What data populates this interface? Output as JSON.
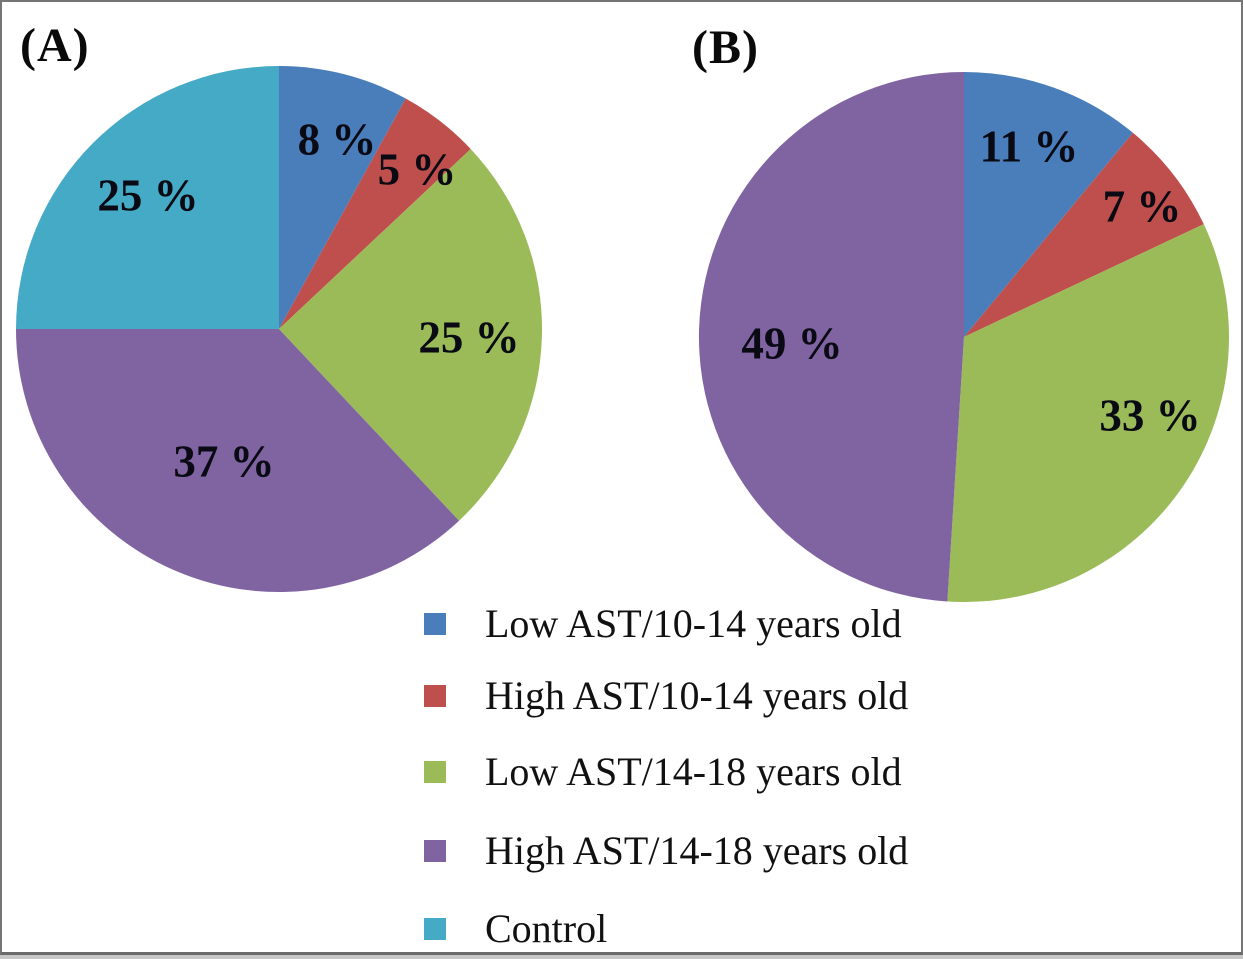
{
  "figure": {
    "background_color": "#ffffff",
    "frame_border_color": "#757575",
    "text_color": "#0a0a14"
  },
  "chart_data": [
    {
      "type": "pie",
      "panel_label": "(A)",
      "start_angle_deg": 0,
      "direction": "clockwise",
      "slices": [
        {
          "label": "Low AST/10-14 years old",
          "value_pct": 8,
          "data_label": "8 %",
          "color": "#4a7ebb"
        },
        {
          "label": "High AST/10-14 years old",
          "value_pct": 5,
          "data_label": "5 %",
          "color": "#bf4f4c"
        },
        {
          "label": "Low AST/14-18 years old",
          "value_pct": 25,
          "data_label": "25 %",
          "color": "#9bbb59"
        },
        {
          "label": "High AST/14-18 years old",
          "value_pct": 37,
          "data_label": "37 %",
          "color": "#8064a2"
        },
        {
          "label": "Control",
          "value_pct": 25,
          "data_label": "25 %",
          "color": "#45aac5"
        }
      ]
    },
    {
      "type": "pie",
      "panel_label": "(B)",
      "start_angle_deg": 0,
      "direction": "clockwise",
      "slices": [
        {
          "label": "Low AST/10-14 years old",
          "value_pct": 11,
          "data_label": "11 %",
          "color": "#4a7ebb"
        },
        {
          "label": "High AST/10-14 years old",
          "value_pct": 7,
          "data_label": "7 %",
          "color": "#bf4f4c"
        },
        {
          "label": "Low AST/14-18 years old",
          "value_pct": 33,
          "data_label": "33 %",
          "color": "#9bbb59"
        },
        {
          "label": "High AST/14-18 years old",
          "value_pct": 49,
          "data_label": "49 %",
          "color": "#8064a2"
        }
      ]
    }
  ],
  "legend": {
    "position": "bottom-center",
    "items": [
      {
        "label": "Low AST/10-14 years old",
        "color": "#4a7ebb"
      },
      {
        "label": "High AST/10-14 years old",
        "color": "#bf4f4c"
      },
      {
        "label": "Low AST/14-18 years old",
        "color": "#9bbb59"
      },
      {
        "label": "High AST/14-18 years old",
        "color": "#8064a2"
      },
      {
        "label": "Control",
        "color": "#45aac5"
      }
    ]
  }
}
